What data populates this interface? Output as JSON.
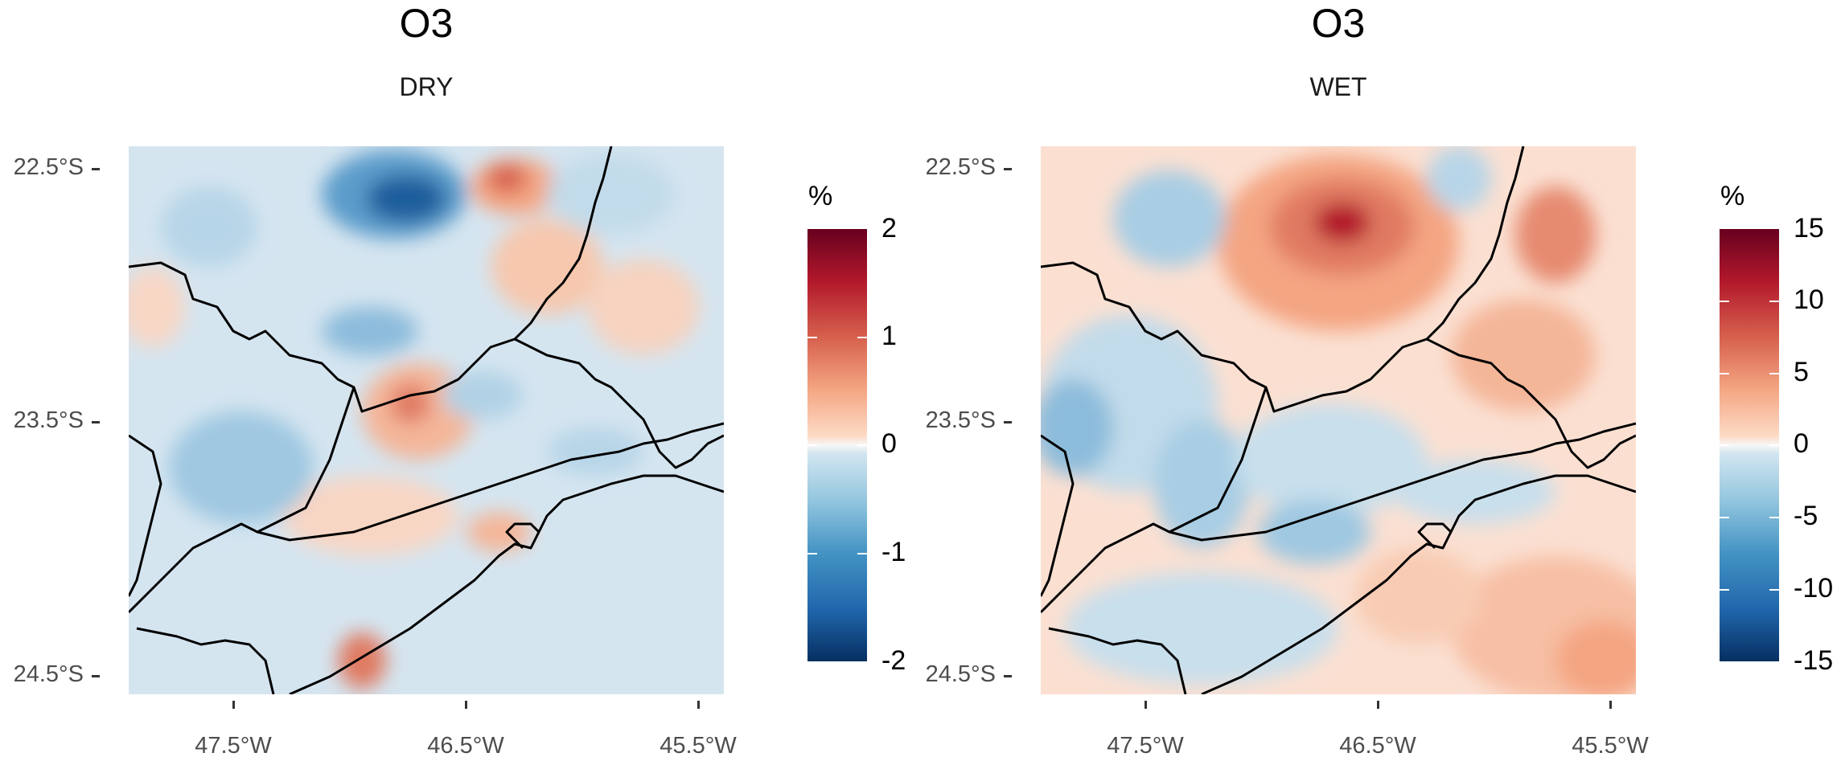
{
  "panels": [
    {
      "title": "O3",
      "subtitle": "DRY",
      "legend": {
        "title": "%",
        "breaks": [
          "2",
          "1",
          "0",
          "-1",
          "-2"
        ],
        "range": [
          -2,
          2
        ]
      }
    },
    {
      "title": "O3",
      "subtitle": "WET",
      "legend": {
        "title": "%",
        "breaks": [
          "15",
          "10",
          "5",
          "0",
          "-5",
          "-10",
          "-15"
        ],
        "range": [
          -15,
          15
        ]
      }
    }
  ],
  "axes": {
    "y_labels": [
      "22.5°S",
      "23.5°S",
      "24.5°S"
    ],
    "x_labels": [
      "47.5°W",
      "46.5°W",
      "45.5°W"
    ]
  },
  "colors": {
    "scale": [
      "#053061",
      "#2166ac",
      "#4393c3",
      "#92c5de",
      "#d1e5f0",
      "#fddbc7",
      "#f4a582",
      "#d6604d",
      "#b2182b",
      "#67001f"
    ]
  }
}
